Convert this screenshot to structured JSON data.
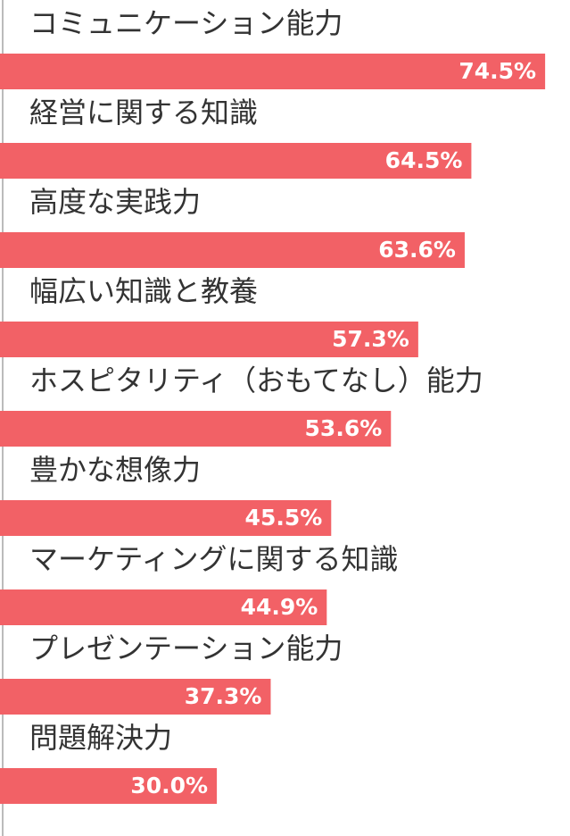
{
  "chart_data": {
    "type": "bar",
    "orientation": "horizontal",
    "categories": [
      "コミュニケーション能力",
      "経営に関する知識",
      "高度な実践力",
      "幅広い知識と教養",
      "ホスピタリティ（おもてなし）能力",
      "豊かな想像力",
      "マーケティングに関する知識",
      "プレゼンテーション能力",
      "問題解決力"
    ],
    "values": [
      74.5,
      64.5,
      63.6,
      57.3,
      53.6,
      45.5,
      44.9,
      37.3,
      30.0
    ],
    "value_labels": [
      "74.5%",
      "64.5%",
      "63.6%",
      "57.3%",
      "53.6%",
      "45.5%",
      "44.9%",
      "37.3%",
      "30.0%"
    ],
    "color": "#f26166"
  }
}
